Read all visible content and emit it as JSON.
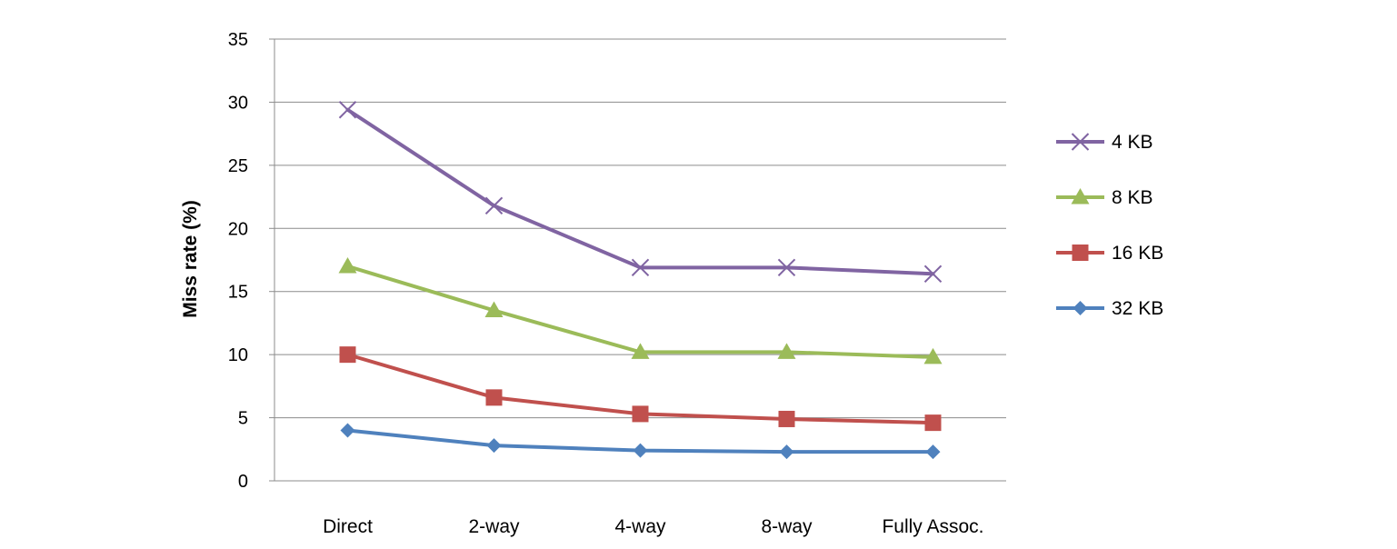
{
  "chart_data": {
    "type": "line",
    "title": "",
    "xlabel": "",
    "ylabel": "Miss rate (%)",
    "categories": [
      "Direct",
      "2-way",
      "4-way",
      "8-way",
      "Fully Assoc."
    ],
    "ylim": [
      0,
      35
    ],
    "yticks": [
      0,
      5,
      10,
      15,
      20,
      25,
      30,
      35
    ],
    "grid": "horizontal",
    "legend_position": "right",
    "series": [
      {
        "name": "4 KB",
        "values": [
          29.4,
          21.8,
          16.9,
          16.9,
          16.4
        ],
        "color": "#8064A2",
        "marker": "x"
      },
      {
        "name": "8 KB",
        "values": [
          17.0,
          13.5,
          10.2,
          10.2,
          9.8
        ],
        "color": "#9BBB59",
        "marker": "triangle"
      },
      {
        "name": "16 KB",
        "values": [
          10.0,
          6.6,
          5.3,
          4.9,
          4.6
        ],
        "color": "#C0504D",
        "marker": "square"
      },
      {
        "name": "32 KB",
        "values": [
          4.0,
          2.8,
          2.4,
          2.3,
          2.3
        ],
        "color": "#4F81BD",
        "marker": "diamond"
      }
    ]
  }
}
